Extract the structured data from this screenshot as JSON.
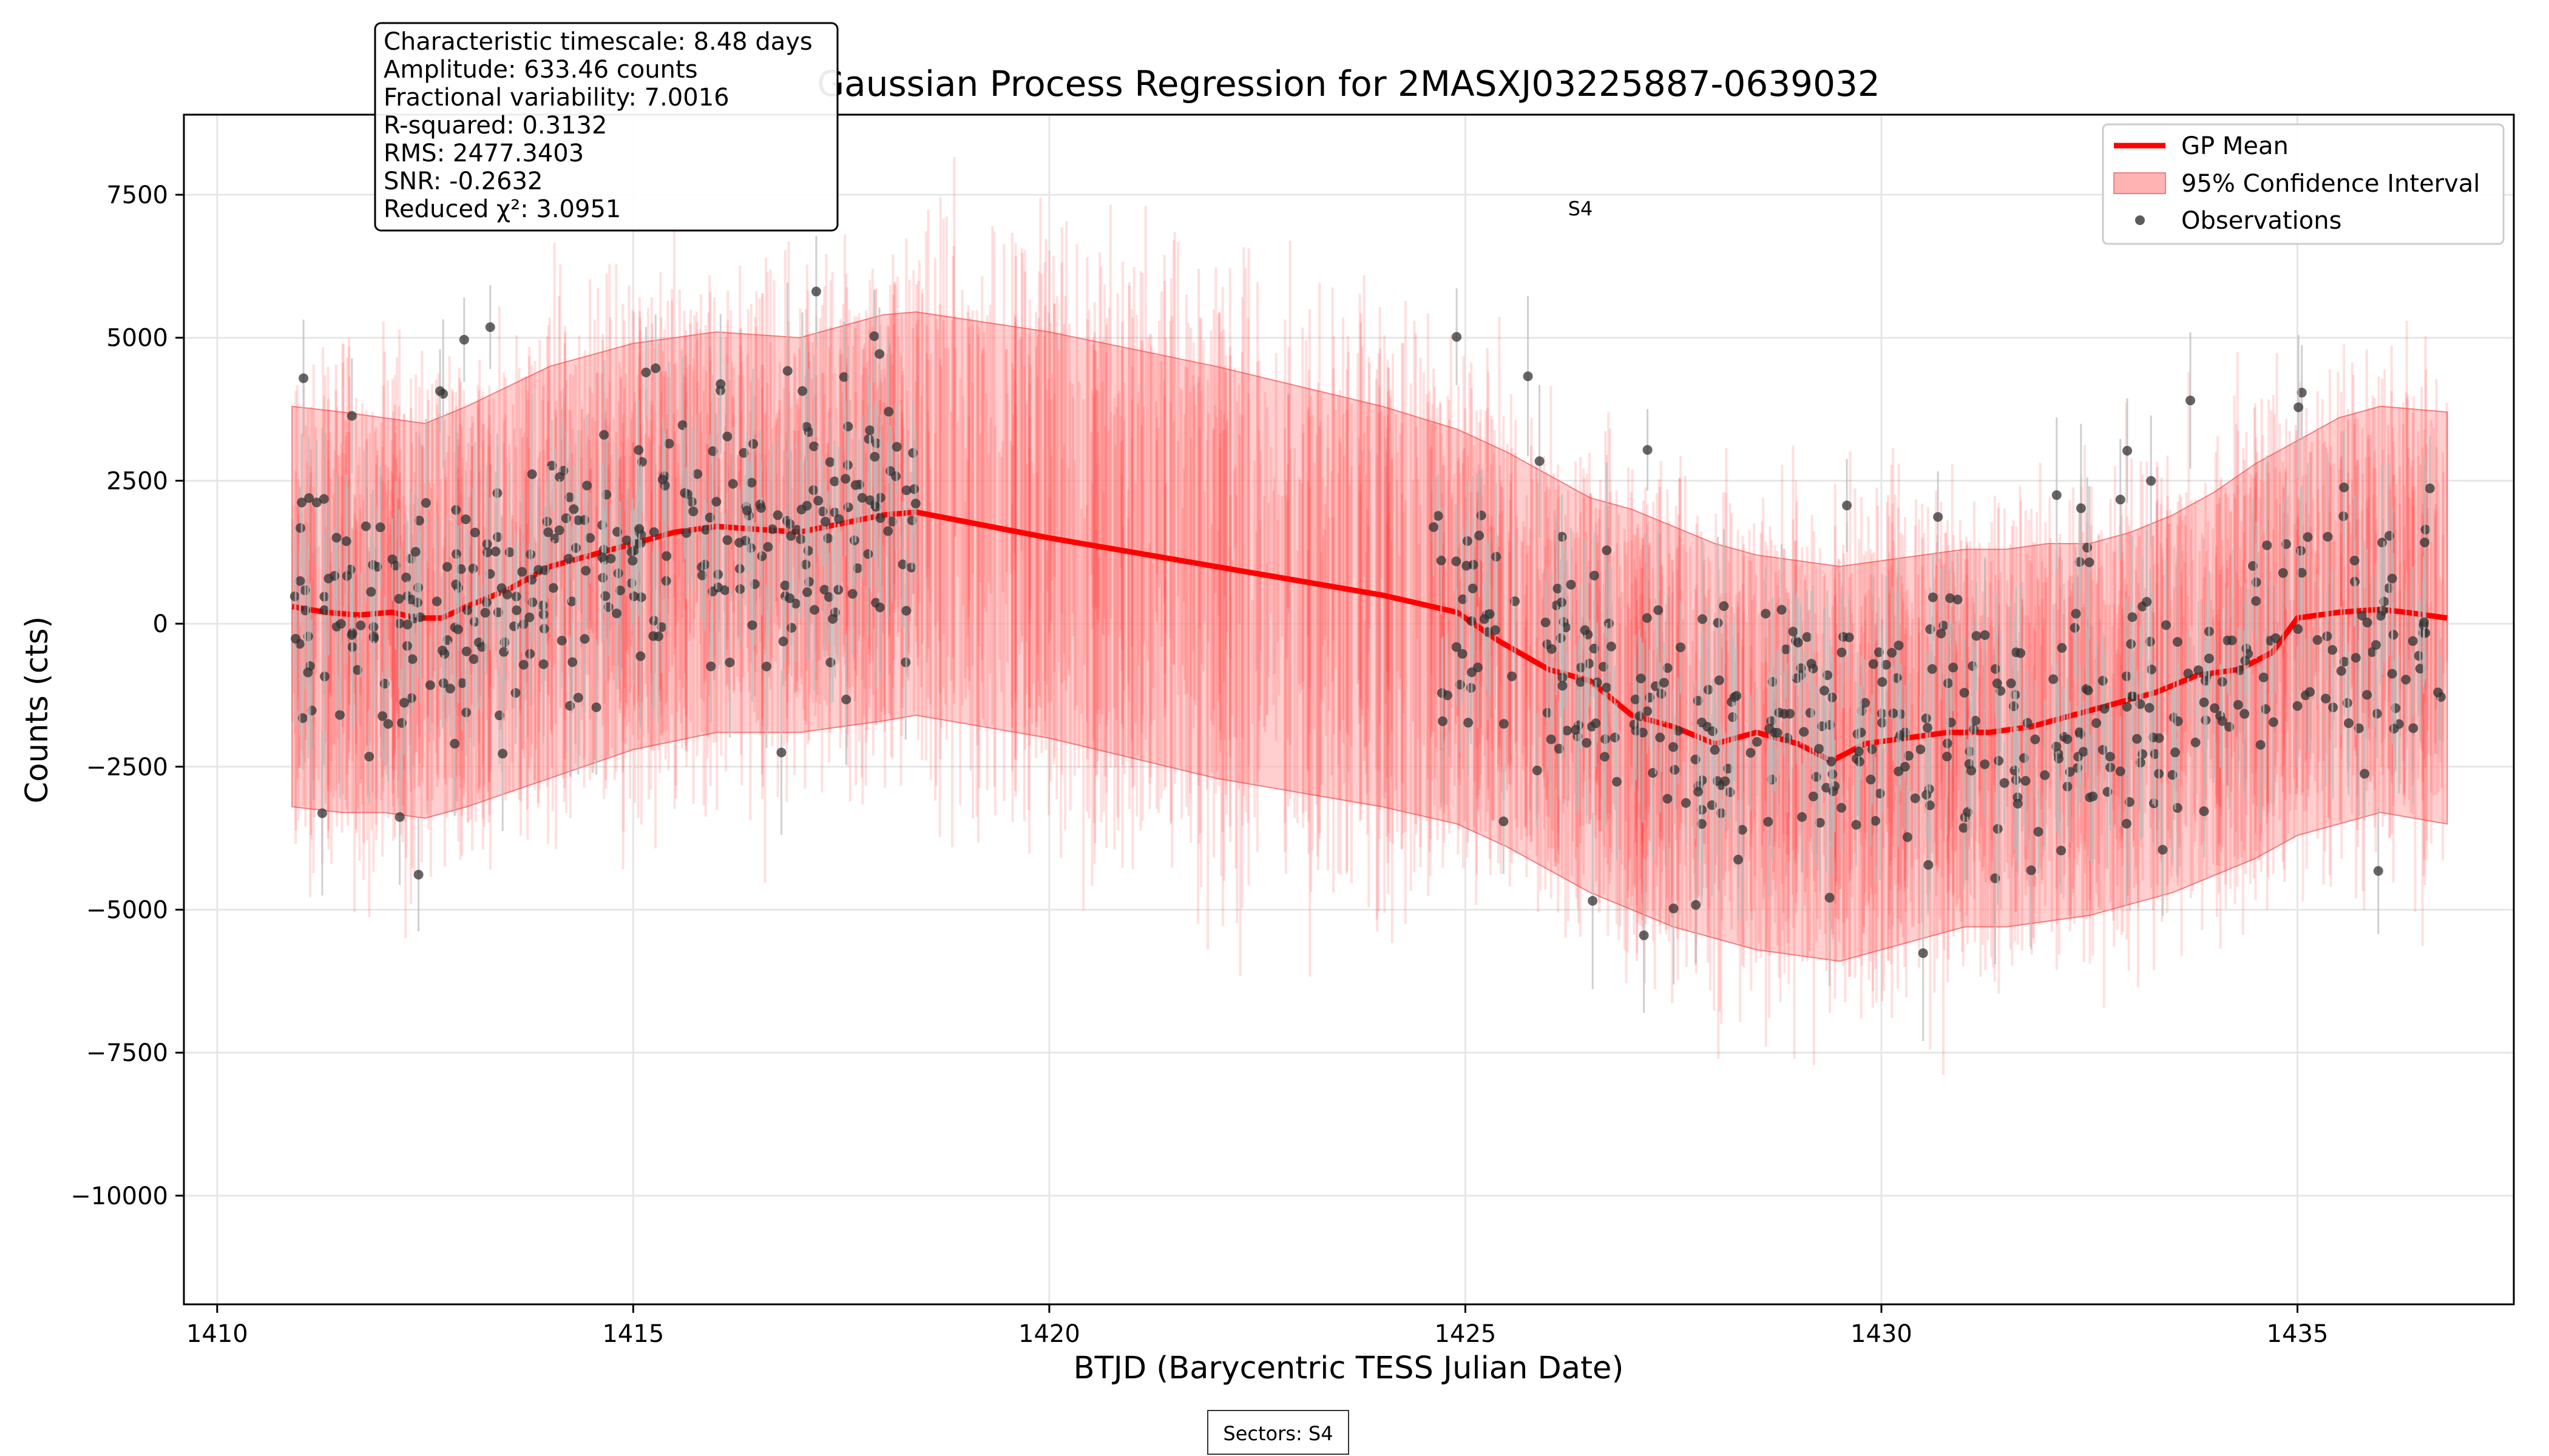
{
  "chart_data": {
    "type": "line",
    "title": "Gaussian Process Regression for 2MASXJ03225887-0639032",
    "xlabel": "BTJD (Barycentric TESS Julian Date)",
    "ylabel": "Counts (cts)",
    "xlim": [
      1409.6,
      1437.6
    ],
    "ylim": [
      -11900,
      8900
    ],
    "xticks": [
      1410,
      1415,
      1420,
      1425,
      1430,
      1435
    ],
    "yticks": [
      -10000,
      -7500,
      -5000,
      -2500,
      0,
      2500,
      5000,
      7500
    ],
    "ytick_labels": [
      "−10000",
      "−7500",
      "−5000",
      "−2500",
      "0",
      "2500",
      "5000",
      "7500"
    ],
    "grid": true,
    "legend_position": "top-right",
    "legend": [
      "GP Mean",
      "95% Confidence Interval",
      "Observations"
    ],
    "colors": {
      "gp_mean": "#ff0000",
      "ci_fill": "#ffb3b3",
      "ci_edge": "#f08080",
      "obs": "#333333",
      "errbar": "#bbbbbb"
    },
    "series": [
      {
        "name": "GP Mean",
        "x": [
          1410.9,
          1411.3,
          1411.7,
          1412.1,
          1412.4,
          1412.7,
          1413.0,
          1413.5,
          1414.0,
          1414.5,
          1415.0,
          1415.5,
          1416.0,
          1416.5,
          1417.0,
          1417.5,
          1418.0,
          1418.4,
          1420.0,
          1422.0,
          1424.0,
          1424.9,
          1425.4,
          1426.0,
          1426.5,
          1427.0,
          1427.5,
          1428.0,
          1428.5,
          1429.0,
          1429.4,
          1429.8,
          1430.3,
          1430.8,
          1431.3,
          1431.8,
          1432.3,
          1432.8,
          1433.3,
          1433.8,
          1434.3,
          1434.7,
          1435.0,
          1435.5,
          1436.0,
          1436.3,
          1436.8
        ],
        "y": [
          300,
          200,
          150,
          200,
          100,
          100,
          300,
          600,
          1000,
          1200,
          1400,
          1600,
          1700,
          1650,
          1600,
          1750,
          1900,
          1950,
          1500,
          1000,
          500,
          200,
          -300,
          -800,
          -1000,
          -1600,
          -1800,
          -2100,
          -1900,
          -2100,
          -2400,
          -2100,
          -2000,
          -1900,
          -1900,
          -1800,
          -1600,
          -1400,
          -1200,
          -900,
          -800,
          -500,
          100,
          200,
          250,
          200,
          100
        ]
      },
      {
        "name": "95% Confidence Interval",
        "x": [
          1410.9,
          1411.5,
          1412.0,
          1412.5,
          1413.0,
          1414.0,
          1415.0,
          1416.0,
          1417.0,
          1418.0,
          1418.4,
          1420.0,
          1422.0,
          1424.0,
          1424.9,
          1425.5,
          1426.0,
          1426.5,
          1427.0,
          1427.5,
          1428.0,
          1428.5,
          1429.0,
          1429.5,
          1430.0,
          1430.5,
          1431.0,
          1431.5,
          1432.0,
          1432.5,
          1433.0,
          1433.5,
          1434.0,
          1434.5,
          1435.0,
          1435.5,
          1436.0,
          1436.8
        ],
        "upper": [
          3800,
          3700,
          3600,
          3500,
          3800,
          4500,
          4900,
          5100,
          5000,
          5400,
          5450,
          5100,
          4500,
          3800,
          3400,
          3000,
          2600,
          2200,
          2000,
          1700,
          1400,
          1200,
          1100,
          1000,
          1100,
          1200,
          1300,
          1300,
          1400,
          1400,
          1600,
          1900,
          2300,
          2800,
          3200,
          3600,
          3800,
          3700
        ],
        "lower": [
          -3200,
          -3300,
          -3300,
          -3400,
          -3200,
          -2700,
          -2200,
          -1900,
          -1900,
          -1700,
          -1600,
          -2000,
          -2700,
          -3200,
          -3500,
          -3900,
          -4300,
          -4700,
          -5000,
          -5300,
          -5500,
          -5700,
          -5800,
          -5900,
          -5700,
          -5500,
          -5300,
          -5300,
          -5200,
          -5100,
          -4900,
          -4700,
          -4400,
          -4100,
          -3700,
          -3500,
          -3300,
          -3500
        ]
      },
      {
        "name": "Observations",
        "note_points": "dense scatter of ~760 observations spanning 1410.9–1418.4 and 1424.6–1436.8 with error bars"
      }
    ],
    "stats": [
      "Characteristic timescale: 8.48 days",
      "Amplitude: 633.46 counts",
      "Fractional variability: 7.0016",
      "R-squared: 0.3132",
      "RMS: 2477.3403",
      "SNR: -0.2632",
      "Reduced χ²: 3.0951"
    ],
    "sector_label": "S4",
    "sectors_footer": "Sectors: S4"
  }
}
